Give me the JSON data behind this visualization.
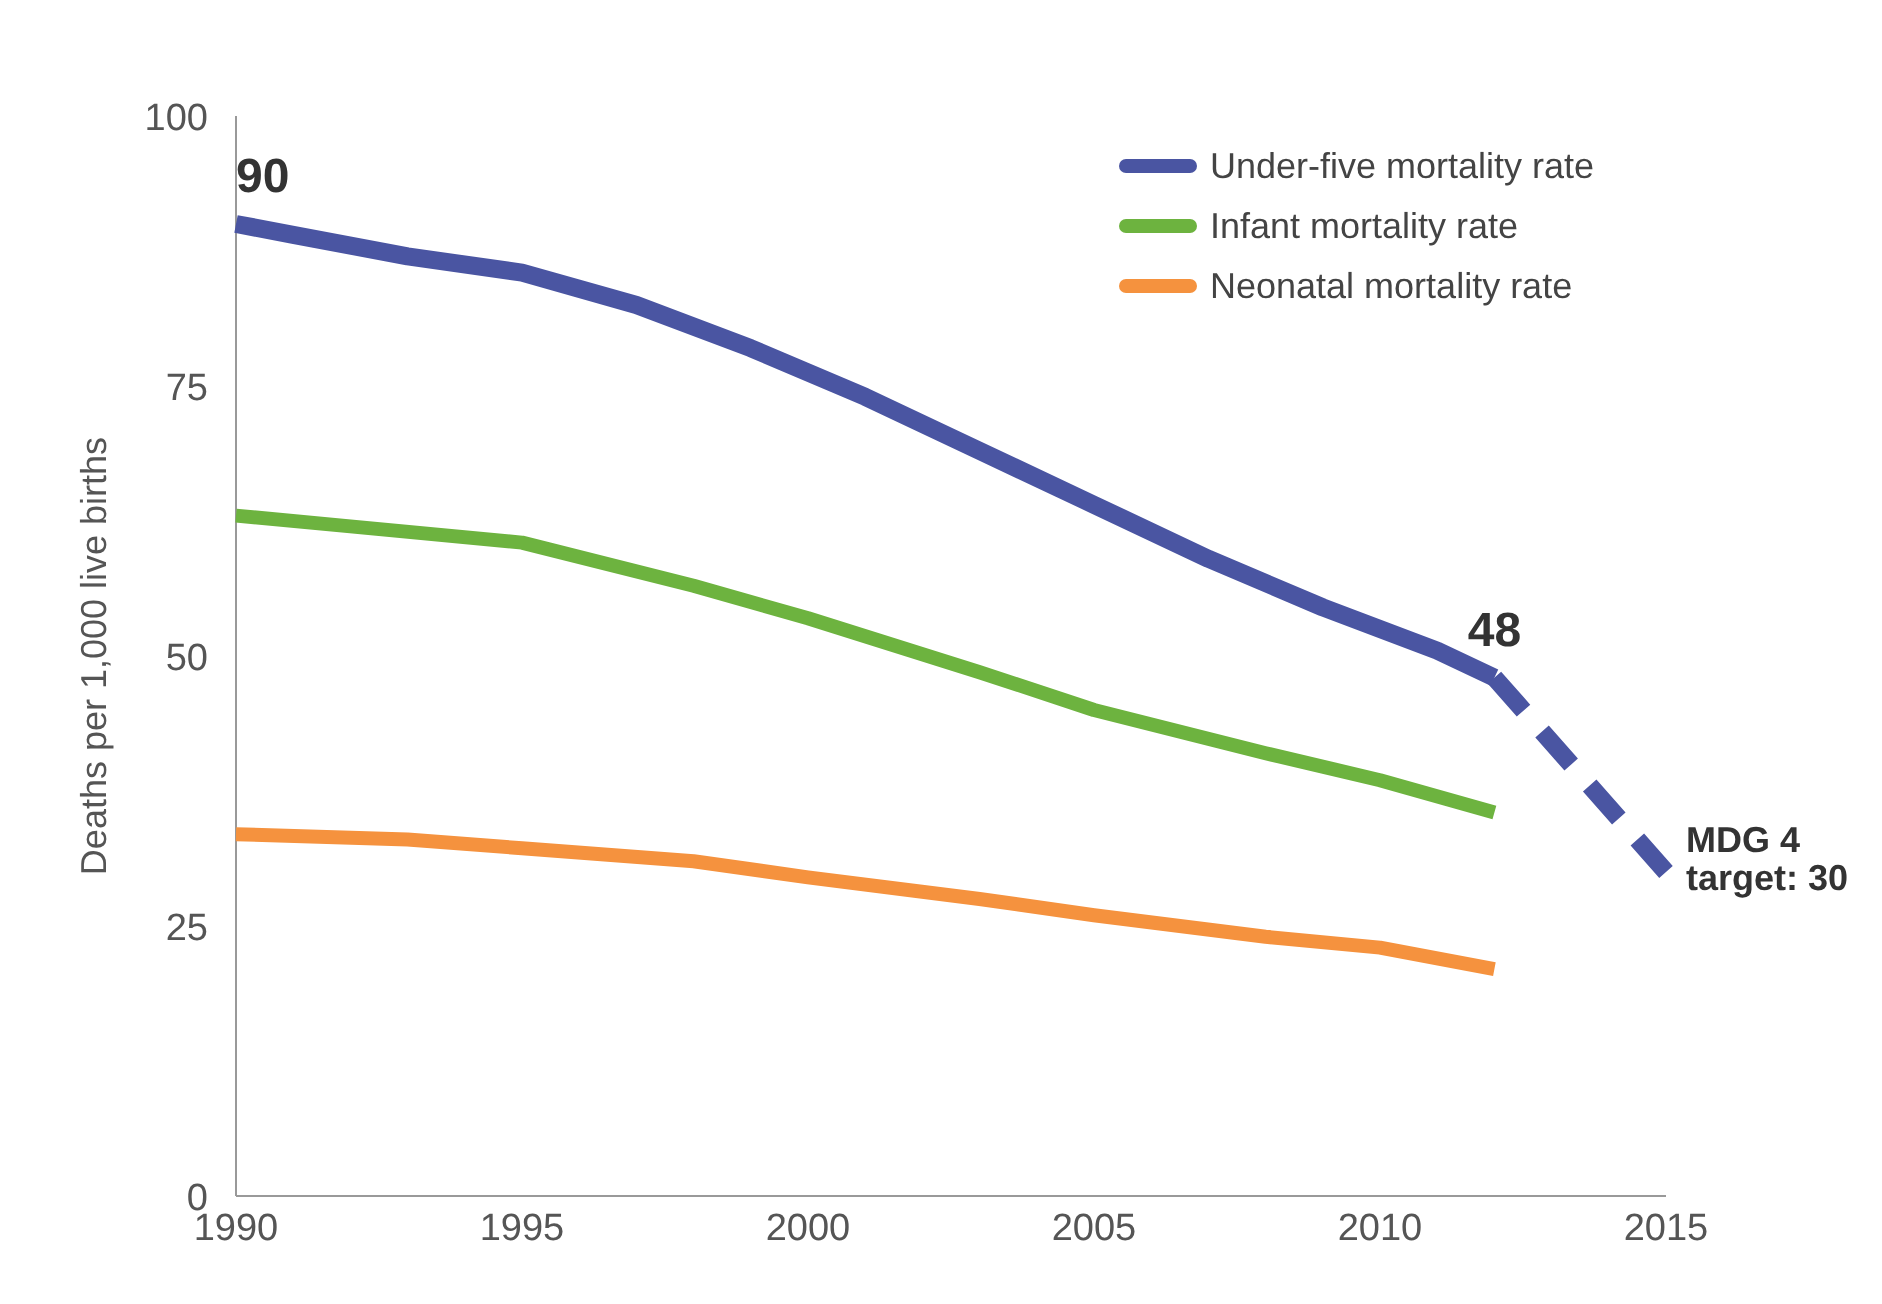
{
  "chart_data": {
    "type": "line",
    "ylabel": "Deaths per 1,000 live births",
    "xlim": [
      1990,
      2015
    ],
    "xticks": [
      1990,
      1995,
      2000,
      2005,
      2010,
      2015
    ],
    "ylim": [
      0,
      100
    ],
    "yticks": [
      0,
      25,
      50,
      75,
      100
    ],
    "grid": false,
    "legend": "top right",
    "marker": "none",
    "series": [
      {
        "name": "Under-five mortality rate",
        "color": "#4a55a2",
        "x": [
          1990,
          1991,
          1993,
          1995,
          1997,
          1999,
          2001,
          2003,
          2005,
          2007,
          2009,
          2011,
          2012
        ],
        "values": [
          90,
          89,
          87,
          85.5,
          82.5,
          78.5,
          74,
          69,
          64,
          59,
          54.5,
          50.5,
          48
        ]
      },
      {
        "name": "Infant mortality rate",
        "color": "#6db33f",
        "x": [
          1990,
          1992,
          1995,
          1998,
          2000,
          2003,
          2005,
          2008,
          2010,
          2012
        ],
        "values": [
          63,
          62,
          60.5,
          56.5,
          53.5,
          48.5,
          45,
          41,
          38.5,
          35.5
        ]
      },
      {
        "name": "Neonatal mortality rate",
        "color": "#f5923e",
        "x": [
          1990,
          1993,
          1995,
          1998,
          2000,
          2003,
          2005,
          2008,
          2010,
          2012
        ],
        "values": [
          33.5,
          33,
          32.2,
          31,
          29.5,
          27.5,
          26,
          24,
          23,
          21
        ]
      },
      {
        "color": "#4a55a2",
        "line_style": "dashed",
        "x": [
          2012,
          2015
        ],
        "values": [
          48,
          30
        ]
      }
    ],
    "annotations": [
      {
        "text": "90",
        "x": 1990,
        "y": 90
      },
      {
        "text": "48",
        "x": 2012,
        "y": 48
      },
      {
        "text": "MDG 4 target: 30",
        "x": 2015,
        "y": 30
      }
    ]
  }
}
